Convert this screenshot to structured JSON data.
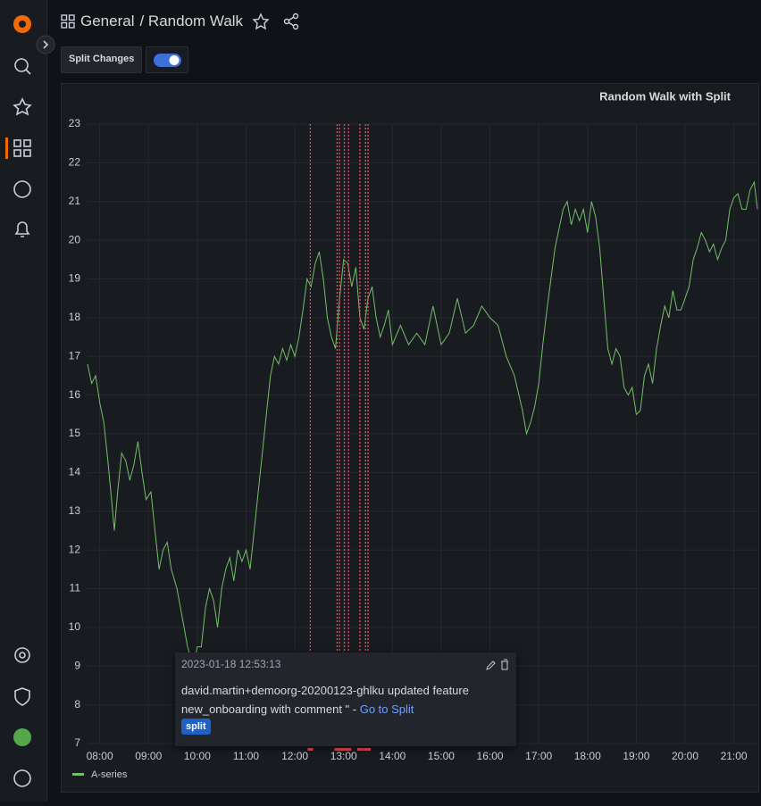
{
  "header": {
    "folder": "General",
    "title": "/ Random Walk"
  },
  "controls": {
    "variable_label": "Split Changes"
  },
  "chart_data": {
    "type": "line",
    "title": "Random Walk with Split",
    "x": [
      "07:45",
      "07:50",
      "07:55",
      "08:00",
      "08:05",
      "08:10",
      "08:15",
      "08:18",
      "08:22",
      "08:27",
      "08:32",
      "08:37",
      "08:42",
      "08:47",
      "08:52",
      "08:57",
      "09:03",
      "09:08",
      "09:13",
      "09:18",
      "09:23",
      "09:28",
      "09:35",
      "09:42",
      "09:48",
      "09:55",
      "10:00",
      "10:05",
      "10:10",
      "10:15",
      "10:20",
      "10:25",
      "10:30",
      "10:35",
      "10:40",
      "10:45",
      "10:50",
      "10:55",
      "11:00",
      "11:05",
      "11:10",
      "11:15",
      "11:20",
      "11:25",
      "11:30",
      "11:35",
      "11:40",
      "11:45",
      "11:50",
      "11:55",
      "12:00",
      "12:05",
      "12:10",
      "12:15",
      "12:20",
      "12:25",
      "12:30",
      "12:35",
      "12:40",
      "12:45",
      "12:50",
      "12:55",
      "13:00",
      "13:05",
      "13:10",
      "13:15",
      "13:20",
      "13:25",
      "13:30",
      "13:35",
      "13:40",
      "13:45",
      "13:50",
      "13:55",
      "14:00",
      "14:10",
      "14:20",
      "14:30",
      "14:40",
      "14:50",
      "15:00",
      "15:10",
      "15:20",
      "15:30",
      "15:40",
      "15:50",
      "16:00",
      "16:10",
      "16:20",
      "16:30",
      "16:40",
      "16:45",
      "16:50",
      "16:55",
      "17:00",
      "17:05",
      "17:10",
      "17:15",
      "17:20",
      "17:25",
      "17:30",
      "17:35",
      "17:40",
      "17:45",
      "17:50",
      "17:55",
      "18:00",
      "18:05",
      "18:10",
      "18:15",
      "18:20",
      "18:25",
      "18:30",
      "18:35",
      "18:40",
      "18:45",
      "18:50",
      "18:55",
      "19:00",
      "19:05",
      "19:10",
      "19:15",
      "19:20",
      "19:25",
      "19:30",
      "19:35",
      "19:40",
      "19:45",
      "19:50",
      "19:55",
      "20:00",
      "20:05",
      "20:10",
      "20:15",
      "20:20",
      "20:25",
      "20:30",
      "20:35",
      "20:40",
      "20:45",
      "20:50",
      "20:55",
      "21:00",
      "21:05",
      "21:10",
      "21:15",
      "21:20",
      "21:25",
      "21:29"
    ],
    "series": [
      {
        "name": "A-series",
        "color": "#73bf69",
        "values": [
          16.8,
          16.3,
          16.5,
          15.8,
          15.3,
          14.3,
          13.2,
          12.5,
          13.5,
          14.5,
          14.3,
          13.8,
          14.2,
          14.8,
          14.0,
          13.3,
          13.5,
          12.5,
          11.5,
          12.0,
          12.2,
          11.5,
          11.0,
          10.2,
          9.5,
          9.0,
          9.5,
          9.5,
          10.5,
          11.0,
          10.7,
          10.0,
          11.0,
          11.5,
          11.8,
          11.2,
          12.0,
          11.7,
          12.0,
          11.5,
          12.5,
          13.5,
          14.5,
          15.5,
          16.5,
          17.0,
          16.8,
          17.2,
          16.9,
          17.3,
          17.0,
          17.5,
          18.2,
          19.0,
          18.8,
          19.4,
          19.7,
          19.0,
          18.0,
          17.5,
          17.2,
          18.5,
          19.5,
          19.4,
          18.8,
          19.3,
          18.0,
          17.7,
          18.5,
          18.8,
          18.0,
          17.5,
          17.8,
          18.2,
          17.3,
          17.8,
          17.3,
          17.6,
          17.3,
          18.3,
          17.3,
          17.6,
          18.5,
          17.6,
          17.8,
          18.3,
          18.0,
          17.8,
          17.0,
          16.5,
          15.6,
          15.0,
          15.3,
          15.7,
          16.3,
          17.3,
          18.2,
          19.0,
          19.8,
          20.3,
          20.8,
          21.0,
          20.4,
          20.8,
          20.5,
          20.8,
          20.2,
          21.0,
          20.6,
          19.8,
          18.5,
          17.2,
          16.8,
          17.2,
          17.0,
          16.2,
          16.0,
          16.2,
          15.5,
          15.6,
          16.5,
          16.8,
          16.3,
          17.2,
          17.8,
          18.3,
          18.0,
          18.7,
          18.2,
          18.2,
          18.5,
          18.8,
          19.5,
          19.8,
          20.2,
          20.0,
          19.7,
          19.9,
          19.5,
          19.8,
          20.0,
          20.8,
          21.1,
          21.2,
          20.8,
          20.8,
          21.3,
          21.5,
          20.8
        ]
      }
    ],
    "xlim": [
      "07:45",
      "21:29"
    ],
    "xticks": [
      "08:00",
      "09:00",
      "10:00",
      "11:00",
      "12:00",
      "13:00",
      "14:00",
      "15:00",
      "16:00",
      "17:00",
      "18:00",
      "19:00",
      "20:00",
      "21:00"
    ],
    "ylim": [
      7,
      23
    ],
    "yticks": [
      7,
      8,
      9,
      10,
      11,
      12,
      13,
      14,
      15,
      16,
      17,
      18,
      19,
      20,
      21,
      22,
      23
    ],
    "grid": true,
    "annotations": {
      "color": "#f2495c",
      "x": [
        "12:19",
        "12:52",
        "12:55",
        "13:01",
        "13:06",
        "13:20",
        "13:27",
        "13:30"
      ]
    }
  },
  "tooltip": {
    "time": "2023-01-18 12:53:13",
    "text": "david.martin+demoorg-20200123-ghlku updated feature new_onboarding with comment \" - ",
    "link": "Go to Split",
    "tag": "split"
  }
}
